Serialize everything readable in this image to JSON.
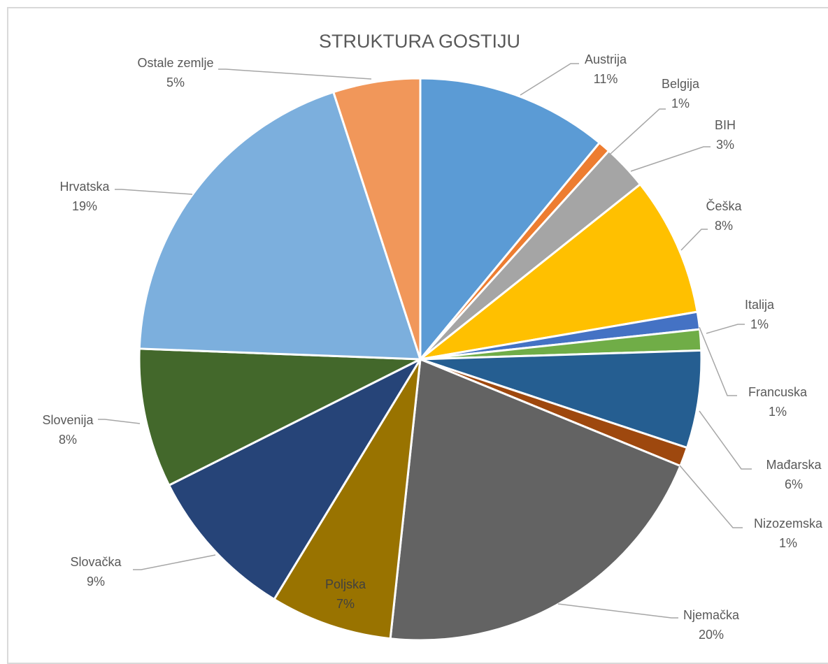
{
  "chart_data": {
    "type": "pie",
    "title": "STRUKTURA GOSTIJU",
    "slices": [
      {
        "name": "Austrija",
        "value": 11,
        "label": "11%",
        "color": "#5b9bd5"
      },
      {
        "name": "Belgija",
        "value": 0.7,
        "label": "1%",
        "color": "#ed7d31"
      },
      {
        "name": "BIH",
        "value": 2.6,
        "label": "3%",
        "color": "#a5a5a5"
      },
      {
        "name": "Češka",
        "value": 8,
        "label": "8%",
        "color": "#ffc000"
      },
      {
        "name": "Italija",
        "value": 1,
        "label": "1%",
        "color": "#4472c4"
      },
      {
        "name": "Francuska",
        "value": 1.2,
        "label": "1%",
        "color": "#70ad47"
      },
      {
        "name": "Mađarska",
        "value": 5.6,
        "label": "6%",
        "color": "#255e91"
      },
      {
        "name": "Nizozemska",
        "value": 1.1,
        "label": "1%",
        "color": "#9e480e"
      },
      {
        "name": "Njemačka",
        "value": 20.5,
        "label": "20%",
        "color": "#636363"
      },
      {
        "name": "Poljska",
        "value": 7,
        "label": "7%",
        "color": "#997300"
      },
      {
        "name": "Slovačka",
        "value": 8.9,
        "label": "9%",
        "color": "#264478"
      },
      {
        "name": "Slovenija",
        "value": 8,
        "label": "8%",
        "color": "#43682b"
      },
      {
        "name": "Hrvatska",
        "value": 19.4,
        "label": "19%",
        "color": "#7cafdd"
      },
      {
        "name": "Ostale zemlje",
        "value": 5,
        "label": "5%",
        "color": "#f1975a"
      }
    ]
  }
}
